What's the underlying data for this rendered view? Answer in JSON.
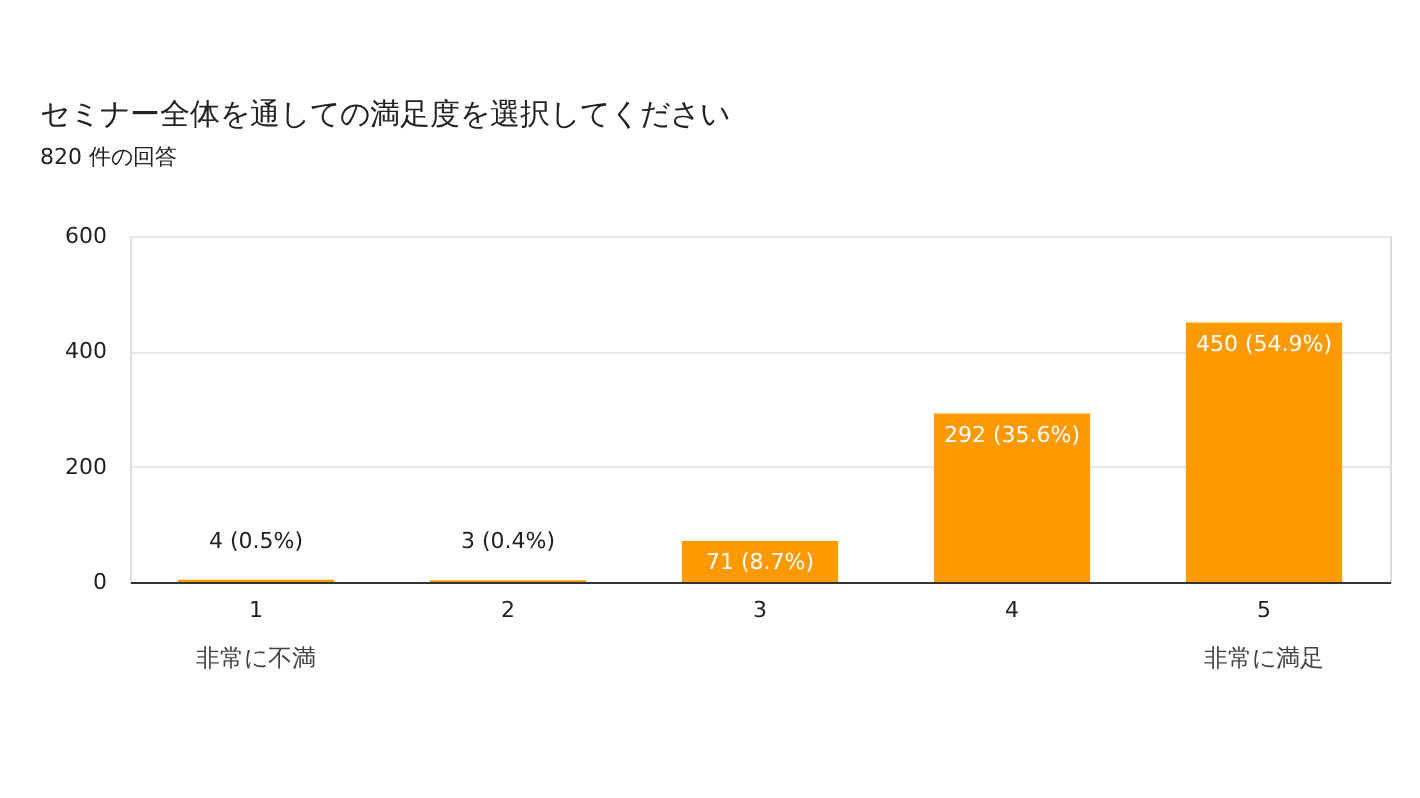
{
  "chart_data": {
    "type": "bar",
    "title": "セミナー全体を通しての満足度を選択してください",
    "subtitle": "820 件の回答",
    "categories": [
      "1",
      "2",
      "3",
      "4",
      "5"
    ],
    "values": [
      4,
      3,
      71,
      292,
      450
    ],
    "value_labels": [
      "4 (0.5%)",
      "3 (0.4%)",
      "71 (8.7%)",
      "292 (35.6%)",
      "450 (54.9%)"
    ],
    "color": "#ff9900",
    "ylim": [
      0,
      600
    ],
    "yticks": [
      0,
      200,
      400,
      600
    ],
    "grid": "y",
    "annotations": [
      "非常に不満",
      "非常に満足"
    ]
  }
}
